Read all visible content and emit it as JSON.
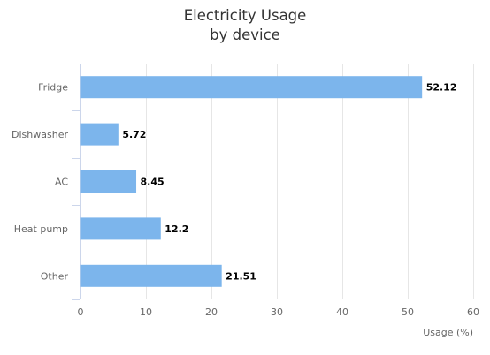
{
  "chart_data": {
    "type": "bar",
    "orientation": "horizontal",
    "title": [
      "Electricity Usage",
      "by device"
    ],
    "categories": [
      "Fridge",
      "Dishwasher",
      "AC",
      "Heat pump",
      "Other"
    ],
    "values": [
      52.12,
      5.72,
      8.45,
      12.2,
      21.51
    ],
    "value_labels": [
      "52.12",
      "5.72",
      "8.45",
      "12.2",
      "21.51"
    ],
    "xlabel": "Usage (%)",
    "ylabel": "",
    "xlim": [
      0,
      60
    ],
    "ticks": [
      0,
      10,
      20,
      30,
      40,
      50,
      60
    ],
    "grid": true,
    "legend": false,
    "bar_color": "#7cb5ec",
    "grid_color": "#e6e6e6",
    "axis_color": "#ccd6eb"
  }
}
